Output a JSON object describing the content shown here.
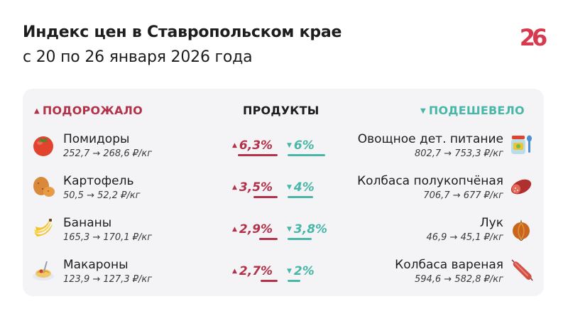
{
  "header": {
    "title": "Индекс цен в Ставропольском крае",
    "subtitle": "с 20 по 26 января 2026 года",
    "logo_text": "26"
  },
  "columns": {
    "up_label": "ПОДОРОЖАЛО",
    "products_label": "ПРОДУКТЫ",
    "down_label": "ПОДЕШЕВЕЛО"
  },
  "up_items": [
    {
      "name": "Помидоры",
      "price": "252,7 → 268,6 ₽/кг",
      "percent": "6,3%",
      "icon": "tomato-icon"
    },
    {
      "name": "Картофель",
      "price": "50,5 → 52,2 ₽/кг",
      "percent": "3,5%",
      "icon": "potato-icon"
    },
    {
      "name": "Бананы",
      "price": "165,3 → 170,1 ₽/кг",
      "percent": "2,9%",
      "icon": "banana-icon"
    },
    {
      "name": "Макароны",
      "price": "123,9 → 127,3 ₽/кг",
      "percent": "2,7%",
      "icon": "pasta-icon"
    }
  ],
  "down_items": [
    {
      "name": "Овощное дет. питание",
      "price": "802,7 → 753,3 ₽/кг",
      "percent": "6%",
      "icon": "baby-food-jar-icon"
    },
    {
      "name": "Колбаса полукопчёная",
      "price": "706,7 → 677 ₽/кг",
      "percent": "4%",
      "icon": "smoked-sausage-icon"
    },
    {
      "name": "Лук",
      "price": "46,9 → 45,1 ₽/кг",
      "percent": "3,8%",
      "icon": "onion-icon"
    },
    {
      "name": "Колбаса вареная",
      "price": "594,6 → 582,8 ₽/кг",
      "percent": "2%",
      "icon": "boiled-sausage-icon"
    }
  ],
  "colors": {
    "up": "#b3324a",
    "down": "#48b7a7",
    "card_bg": "#f4f4f6",
    "logo": "#d7394f"
  }
}
